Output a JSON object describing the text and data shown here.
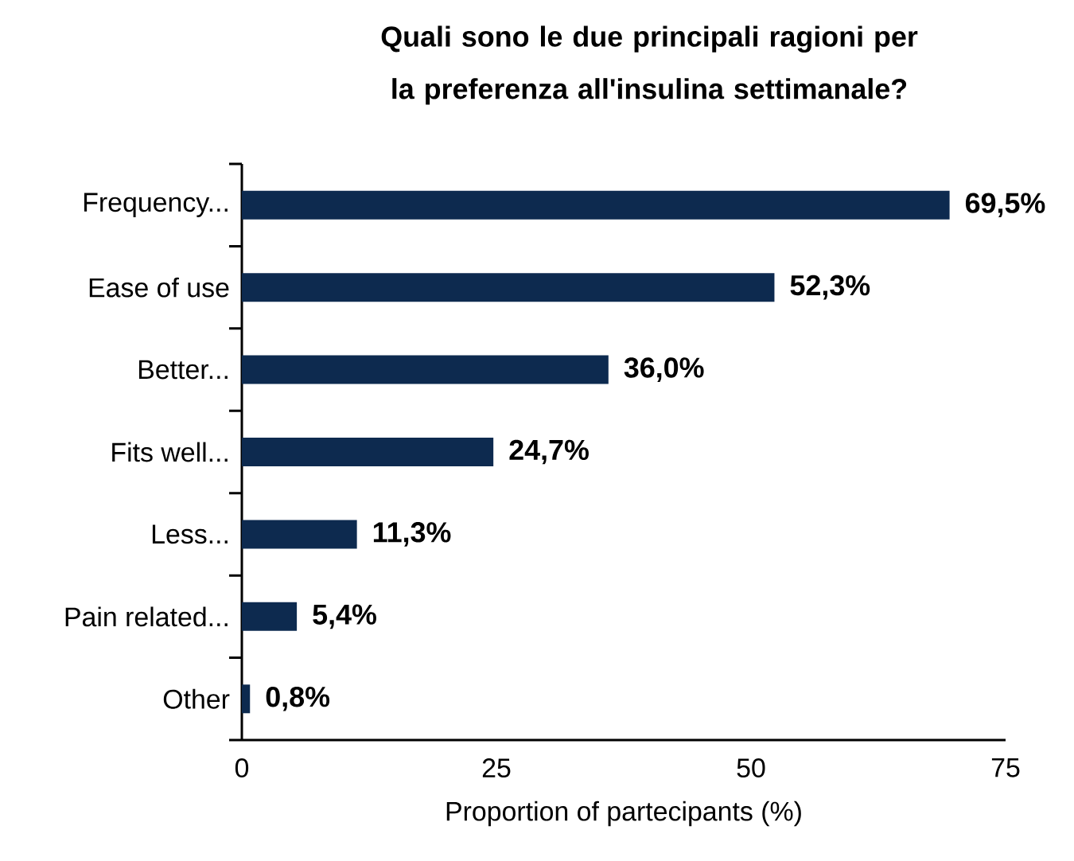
{
  "chart_data": {
    "type": "bar",
    "orientation": "horizontal",
    "title": "Quali sono le due principali ragioni per la preferenza all'insulina settimanale?",
    "xlabel": "Proportion of partecipants (%)",
    "categories": [
      "Frequency...",
      "Ease of use",
      "Better...",
      "Fits well...",
      "Less...",
      "Pain related...",
      "Other"
    ],
    "values": [
      69.5,
      52.3,
      36.0,
      24.7,
      11.3,
      5.4,
      0.8
    ],
    "value_labels": [
      "69,5%",
      "52,3%",
      "36,0%",
      "24,7%",
      "11,3%",
      "5,4%",
      "0,8%"
    ],
    "color": "#0d2a4f",
    "xlim": [
      0,
      75
    ],
    "xticks": [
      0,
      25,
      50,
      75
    ]
  }
}
